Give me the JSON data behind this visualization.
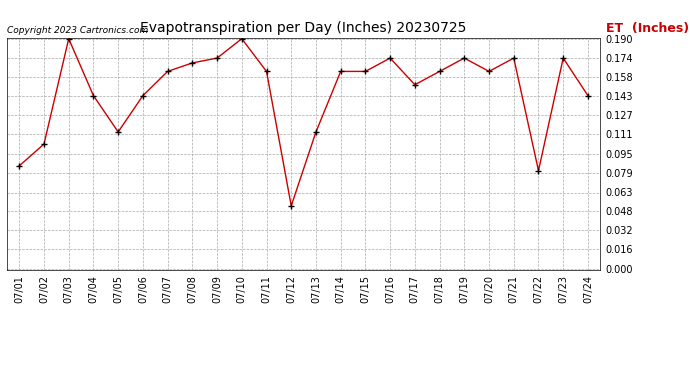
{
  "title": "Evapotranspiration per Day (Inches) 20230725",
  "copyright": "Copyright 2023 Cartronics.com",
  "legend_label": "ET  (Inches)",
  "dates": [
    "07/01",
    "07/02",
    "07/03",
    "07/04",
    "07/05",
    "07/06",
    "07/07",
    "07/08",
    "07/09",
    "07/10",
    "07/11",
    "07/12",
    "07/13",
    "07/14",
    "07/15",
    "07/16",
    "07/17",
    "07/18",
    "07/19",
    "07/20",
    "07/21",
    "07/22",
    "07/23",
    "07/24"
  ],
  "values": [
    0.085,
    0.103,
    0.19,
    0.143,
    0.113,
    0.143,
    0.163,
    0.17,
    0.174,
    0.19,
    0.163,
    0.052,
    0.113,
    0.163,
    0.163,
    0.174,
    0.152,
    0.163,
    0.174,
    0.163,
    0.174,
    0.081,
    0.174,
    0.143
  ],
  "line_color": "#cc0000",
  "marker_color": "#000000",
  "grid_color": "#aaaaaa",
  "bg_color": "#ffffff",
  "title_fontsize": 10,
  "copyright_fontsize": 6.5,
  "legend_fontsize": 9,
  "tick_fontsize": 7,
  "ylim": [
    0.0,
    0.19
  ],
  "yticks": [
    0.0,
    0.016,
    0.032,
    0.048,
    0.063,
    0.079,
    0.095,
    0.111,
    0.127,
    0.143,
    0.158,
    0.174,
    0.19
  ]
}
